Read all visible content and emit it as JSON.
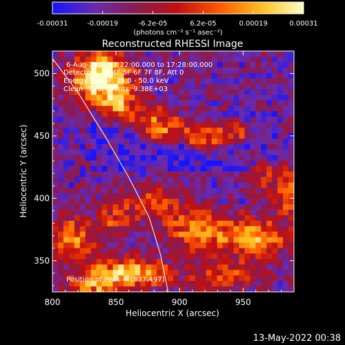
{
  "chart_data": {
    "type": "heatmap",
    "title": "Reconstructed RHESSI Image",
    "xlabel": "Heliocentric X (arcsec)",
    "ylabel": "Heliocentric Y (arcsec)",
    "xlim": [
      800,
      990
    ],
    "ylim": [
      325,
      518
    ],
    "x_ticks": [
      800,
      850,
      900,
      950
    ],
    "y_ticks": [
      350,
      400,
      450,
      500
    ],
    "colorbar": {
      "range": [
        -0.00031,
        0.00031
      ],
      "ticks": [
        "-0.00031",
        "-0.00019",
        "-6.2e-05",
        "6.2e-05",
        "0.00019",
        "0.00031"
      ],
      "unit_label": "(photons cm⁻² s⁻¹ asec⁻²)",
      "colors": [
        "#1414ff",
        "#6a2bb0",
        "#8a1a50",
        "#c21010",
        "#ff5a00",
        "#ffc020",
        "#ffffc8"
      ]
    },
    "annotations": [
      "6-Aug-2011 17:22:00.000 to 17:28:00.000",
      "Detectors: 3F 4F 5F 6F 7F 8F, Att 0",
      "Energy Range: 25.0 - 50.0 keV",
      "Clean: Total counts: 9.38E+03"
    ],
    "peak_label": "Position of Peak = [837,497]",
    "limb_line": [
      [
        800,
        512
      ],
      [
        820,
        485
      ],
      [
        840,
        452
      ],
      [
        860,
        417
      ],
      [
        876,
        385
      ],
      [
        885,
        355
      ],
      [
        891,
        325
      ]
    ],
    "hot_spots": [
      {
        "x": 838,
        "y": 497,
        "w": 1.0,
        "sx": 16,
        "sy": 14
      },
      {
        "x": 852,
        "y": 475,
        "w": 0.5,
        "sx": 10,
        "sy": 9
      },
      {
        "x": 885,
        "y": 458,
        "w": 0.55,
        "sx": 14,
        "sy": 10
      },
      {
        "x": 920,
        "y": 450,
        "w": 0.45,
        "sx": 12,
        "sy": 9
      },
      {
        "x": 945,
        "y": 455,
        "w": 0.35,
        "sx": 10,
        "sy": 8
      },
      {
        "x": 985,
        "y": 405,
        "w": 0.55,
        "sx": 8,
        "sy": 14
      },
      {
        "x": 960,
        "y": 368,
        "w": 0.7,
        "sx": 18,
        "sy": 10
      },
      {
        "x": 915,
        "y": 375,
        "w": 0.6,
        "sx": 18,
        "sy": 12
      },
      {
        "x": 880,
        "y": 395,
        "w": 0.45,
        "sx": 14,
        "sy": 10
      },
      {
        "x": 850,
        "y": 385,
        "w": 0.4,
        "sx": 10,
        "sy": 10
      },
      {
        "x": 815,
        "y": 368,
        "w": 0.55,
        "sx": 14,
        "sy": 12
      },
      {
        "x": 860,
        "y": 340,
        "w": 0.75,
        "sx": 22,
        "sy": 9
      },
      {
        "x": 830,
        "y": 330,
        "w": 0.5,
        "sx": 14,
        "sy": 7
      },
      {
        "x": 935,
        "y": 338,
        "w": 0.45,
        "sx": 20,
        "sy": 8
      },
      {
        "x": 965,
        "y": 420,
        "w": 0.3,
        "sx": 10,
        "sy": 12
      }
    ]
  },
  "timestamp": "13-May-2022 00:38"
}
